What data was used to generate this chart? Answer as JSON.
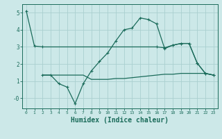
{
  "background_color": "#cce8e8",
  "grid_color": "#aad0d0",
  "line_color": "#1a6b5a",
  "xlabel": "Humidex (Indice chaleur)",
  "xlabel_fontsize": 7,
  "xlim": [
    -0.5,
    23.5
  ],
  "ylim": [
    -0.6,
    5.5
  ],
  "xticks": [
    0,
    1,
    2,
    3,
    4,
    5,
    6,
    7,
    8,
    9,
    10,
    11,
    12,
    13,
    14,
    15,
    16,
    17,
    18,
    19,
    20,
    21,
    22,
    23
  ],
  "yticks": [
    0,
    1,
    2,
    3,
    4,
    5
  ],
  "ytick_labels": [
    "-0",
    "1",
    "2",
    "3",
    "4",
    "5"
  ],
  "line1_x": [
    0,
    1,
    2,
    16,
    17,
    18,
    19,
    20,
    21,
    22,
    23
  ],
  "line1_y": [
    5.1,
    3.05,
    3.0,
    3.0,
    2.95,
    3.1,
    3.2,
    3.2,
    2.05,
    1.45,
    1.35
  ],
  "line2_x": [
    2,
    3,
    4,
    5,
    6,
    7,
    8,
    9,
    10,
    11,
    12,
    13,
    14,
    15,
    16,
    17,
    18,
    19,
    20,
    21,
    22,
    23
  ],
  "line2_y": [
    1.35,
    1.35,
    0.85,
    0.65,
    -0.32,
    0.85,
    1.6,
    2.15,
    2.65,
    3.35,
    4.0,
    4.1,
    4.7,
    4.6,
    4.35,
    2.9,
    3.1,
    3.2,
    3.2,
    2.05,
    1.45,
    1.35
  ],
  "line3_x": [
    2,
    3,
    4,
    5,
    6,
    7,
    8,
    9,
    10,
    11,
    12,
    13,
    14,
    15,
    16,
    17,
    18,
    19,
    20,
    21,
    22,
    23
  ],
  "line3_y": [
    1.35,
    1.35,
    1.35,
    1.35,
    1.35,
    1.35,
    1.1,
    1.1,
    1.1,
    1.15,
    1.15,
    1.2,
    1.25,
    1.3,
    1.35,
    1.4,
    1.4,
    1.45,
    1.45,
    1.45,
    1.45,
    1.35
  ]
}
